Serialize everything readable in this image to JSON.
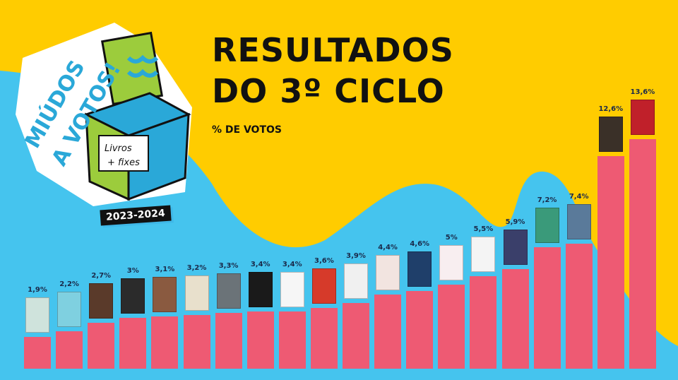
{
  "header": {
    "title_line1": "RESULTADOS",
    "title_line2": "DO 3º CICLO",
    "subtitle": "% DE VOTOS"
  },
  "logo": {
    "text": "MIÚDOS A VOTOS!",
    "box_text": "Livros + fixes",
    "years": "2023-2024"
  },
  "colors": {
    "background_yellow": "#FFCC00",
    "background_blue": "#45C4EE",
    "bar": "#EE5A73"
  },
  "chart_data": {
    "type": "bar",
    "title": "RESULTADOS DO 3º CICLO",
    "ylabel": "% DE VOTOS",
    "values": [
      1.9,
      2.2,
      2.7,
      3,
      3.1,
      3.2,
      3.3,
      3.4,
      3.4,
      3.6,
      3.9,
      4.4,
      4.6,
      5,
      5.5,
      5.9,
      7.2,
      7.4,
      12.6,
      13.6
    ],
    "labels": [
      "1,9%",
      "2,2%",
      "2,7%",
      "3%",
      "3,1%",
      "3,2%",
      "3,3%",
      "3,4%",
      "3,4%",
      "3,6%",
      "3,9%",
      "4,4%",
      "4,6%",
      "5%",
      "5,5%",
      "5,9%",
      "7,2%",
      "7,4%",
      "12,6%",
      "13,6%"
    ],
    "cover_colors": [
      "#cfe3dc",
      "#7fd0e0",
      "#5a3a2a",
      "#2b2b2b",
      "#8a5a40",
      "#e8e0cc",
      "#6b7378",
      "#1a1a1a",
      "#f6f6f6",
      "#d63a2a",
      "#f0f0f0",
      "#f2e4e0",
      "#1f3f6a",
      "#f8eef0",
      "#f4f4f4",
      "#3a3f6a",
      "#3a9a7a",
      "#5a7a9a",
      "#3a3028",
      "#c0202a"
    ],
    "ylim": [
      0,
      14
    ],
    "grid": false
  }
}
